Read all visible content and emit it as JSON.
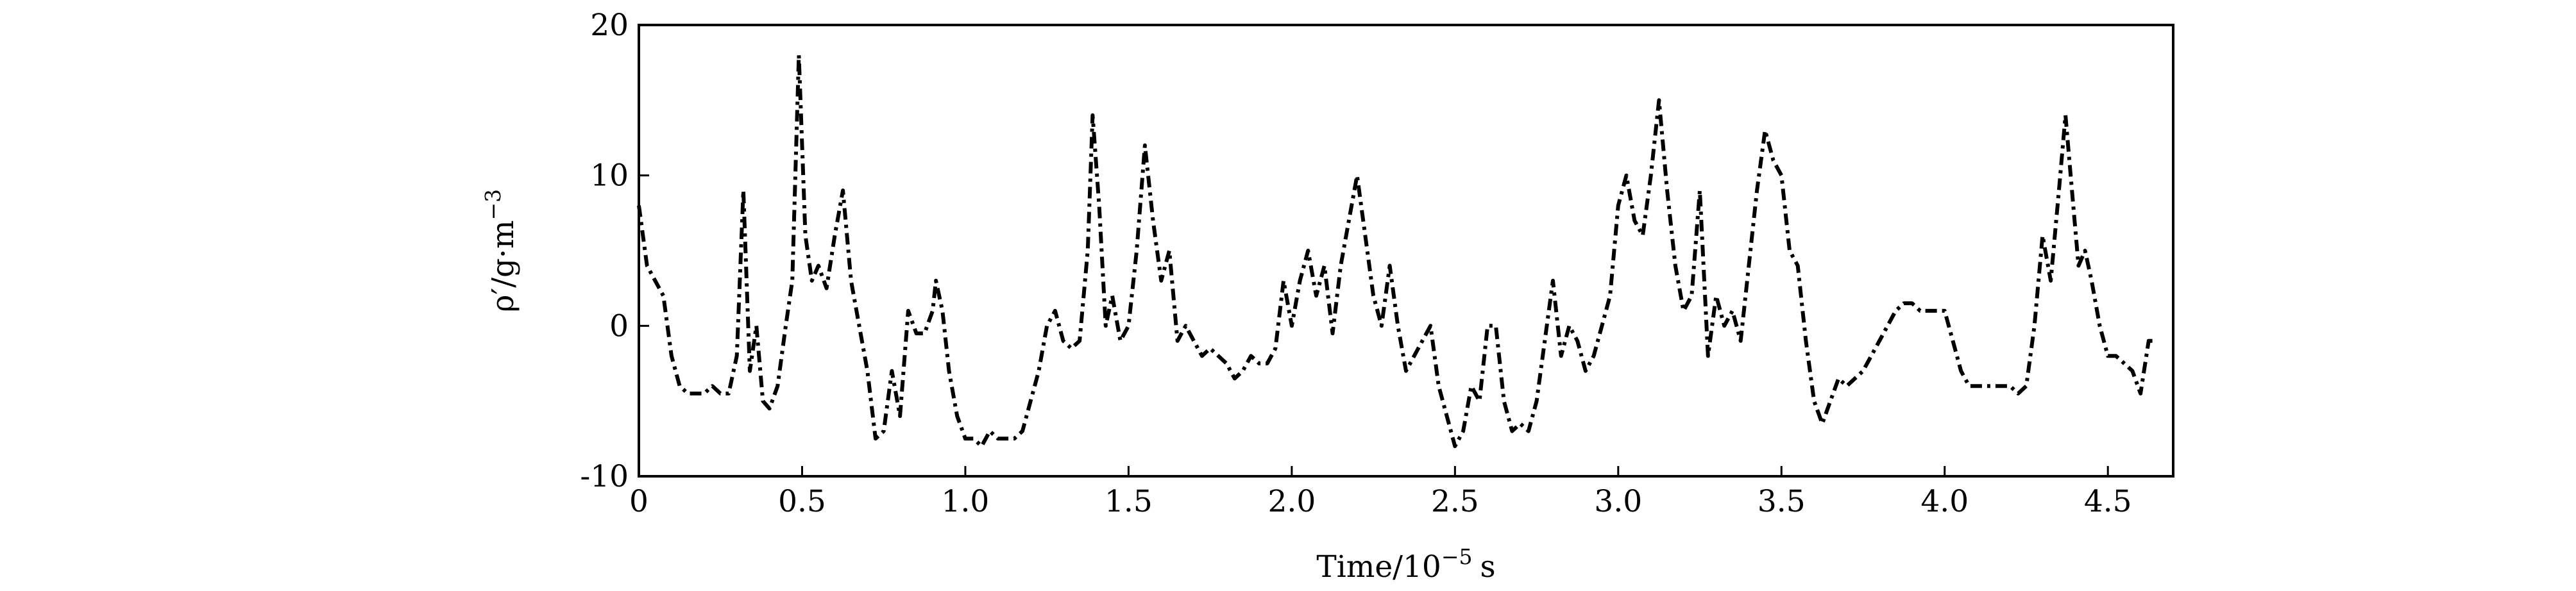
{
  "chart_data": {
    "type": "line",
    "x_label": {
      "main": "Time/10",
      "sup": "−5",
      "unit": "s"
    },
    "y_label": {
      "main": "ρ′/g·m",
      "sup": "−3"
    },
    "xlim": [
      0,
      4.7
    ],
    "ylim": [
      -10,
      20
    ],
    "xticks": [
      0,
      0.5,
      {
        "value": 1,
        "label": "1.0"
      },
      1.5,
      {
        "value": 2,
        "label": "2.0"
      },
      2.5,
      {
        "value": 3,
        "label": "3.0"
      },
      3.5,
      {
        "value": 4,
        "label": "4.0"
      },
      4.5
    ],
    "yticks": [
      -10,
      0,
      10,
      20
    ],
    "x": [
      0,
      0.025,
      0.05,
      0.075,
      0.1,
      0.125,
      0.15,
      0.175,
      0.2,
      0.225,
      0.25,
      0.275,
      0.3,
      0.32,
      0.34,
      0.36,
      0.38,
      0.4,
      0.425,
      0.45,
      0.47,
      0.49,
      0.51,
      0.53,
      0.55,
      0.575,
      0.6,
      0.625,
      0.65,
      0.675,
      0.7,
      0.725,
      0.75,
      0.775,
      0.8,
      0.825,
      0.85,
      0.875,
      0.9,
      0.91,
      0.93,
      0.95,
      0.975,
      1.0,
      1.025,
      1.05,
      1.075,
      1.1,
      1.125,
      1.15,
      1.175,
      1.2,
      1.225,
      1.25,
      1.275,
      1.3,
      1.325,
      1.35,
      1.375,
      1.39,
      1.41,
      1.43,
      1.45,
      1.475,
      1.5,
      1.525,
      1.55,
      1.575,
      1.6,
      1.625,
      1.65,
      1.675,
      1.7,
      1.725,
      1.75,
      1.775,
      1.8,
      1.825,
      1.85,
      1.875,
      1.9,
      1.925,
      1.95,
      1.975,
      2.0,
      2.025,
      2.05,
      2.075,
      2.1,
      2.125,
      2.15,
      2.175,
      2.2,
      2.225,
      2.25,
      2.275,
      2.3,
      2.325,
      2.35,
      2.375,
      2.4,
      2.425,
      2.45,
      2.475,
      2.5,
      2.525,
      2.55,
      2.575,
      2.6,
      2.625,
      2.65,
      2.675,
      2.7,
      2.725,
      2.75,
      2.775,
      2.8,
      2.825,
      2.85,
      2.875,
      2.9,
      2.925,
      2.95,
      2.975,
      3.0,
      3.025,
      3.05,
      3.075,
      3.1,
      3.125,
      3.15,
      3.175,
      3.2,
      3.225,
      3.25,
      3.275,
      3.3,
      3.325,
      3.35,
      3.375,
      3.4,
      3.425,
      3.45,
      3.475,
      3.5,
      3.525,
      3.55,
      3.575,
      3.6,
      3.625,
      3.65,
      3.675,
      3.7,
      3.725,
      3.75,
      3.775,
      3.8,
      3.825,
      3.85,
      3.875,
      3.9,
      3.925,
      3.95,
      3.975,
      4.0,
      4.025,
      4.05,
      4.075,
      4.1,
      4.125,
      4.15,
      4.175,
      4.2,
      4.225,
      4.25,
      4.275,
      4.3,
      4.325,
      4.35,
      4.37,
      4.39,
      4.41,
      4.43,
      4.45,
      4.475,
      4.5,
      4.525,
      4.55,
      4.575,
      4.6,
      4.625,
      4.65
    ],
    "series": [
      {
        "color": "#000000",
        "values": [
          8,
          4,
          3,
          2,
          -2,
          -4,
          -4.5,
          -4.5,
          -4.5,
          -4,
          -4.5,
          -4.5,
          -2,
          9,
          -3,
          0,
          -5,
          -5.5,
          -4,
          0,
          3,
          18,
          6,
          3,
          4,
          2.5,
          6,
          9,
          3,
          0,
          -3,
          -7.5,
          -7,
          -3,
          -6,
          1,
          -0.5,
          -0.5,
          1,
          3,
          1,
          -3,
          -6,
          -7.5,
          -7.5,
          -8,
          -7,
          -7.5,
          -7.5,
          -7.5,
          -7,
          -5,
          -3,
          0,
          1,
          -1,
          -1.5,
          -1,
          5,
          14,
          8,
          0,
          2,
          -1,
          0,
          5,
          12,
          7,
          3,
          5,
          -1,
          0,
          -1,
          -2,
          -1.5,
          -2,
          -2.5,
          -3.5,
          -3,
          -2,
          -2.5,
          -2.5,
          -1.5,
          3,
          0,
          3,
          5,
          2,
          4,
          -0.5,
          4,
          7,
          10,
          6,
          2,
          0,
          4,
          0,
          -3,
          -2,
          -1,
          0,
          -4,
          -6,
          -8,
          -7,
          -4,
          -5,
          0,
          0,
          -5,
          -7,
          -6.5,
          -7,
          -5,
          -1,
          3,
          -2,
          0,
          -1,
          -3,
          -2,
          0,
          2,
          8,
          10,
          7,
          6,
          10,
          15,
          9,
          4,
          1,
          2,
          9,
          -2,
          2,
          0,
          1,
          -1,
          4,
          9,
          13,
          11,
          10,
          5,
          4,
          -1,
          -5,
          -6.5,
          -5,
          -3.5,
          -4,
          -3.5,
          -3,
          -2,
          -1,
          0,
          1,
          1.5,
          1.5,
          1,
          1,
          1,
          1,
          -1,
          -3,
          -4,
          -4,
          -4,
          -4,
          -4,
          -4,
          -4.5,
          -4,
          0,
          6,
          3,
          9,
          14,
          9,
          4,
          5,
          3,
          0,
          -2,
          -2,
          -2.5,
          -3,
          -4.5,
          -1,
          -1
        ]
      }
    ]
  }
}
